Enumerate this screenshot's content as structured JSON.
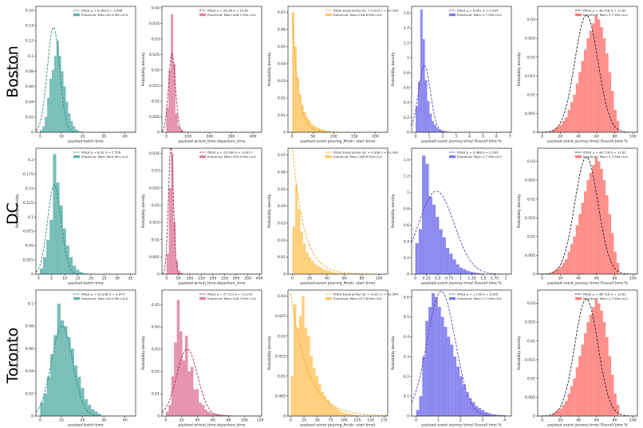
{
  "colors": {
    "batch": "#5fb3ab",
    "arrival": "#e27f9f",
    "pouring": "#ffc765",
    "journey": "#7874ec",
    "overall": "#ff7a76"
  },
  "rows": [
    {
      "label": "Boston"
    },
    {
      "label": "DC"
    },
    {
      "label": "Toronto"
    }
  ],
  "chart_data": [
    {
      "type": "bar",
      "row": "Boston",
      "column": 1,
      "color": "batch",
      "ylabel": "Probability density",
      "xlabel": "payload batch time",
      "xlim": [
        -2,
        45
      ],
      "ylim": [
        0,
        0.165
      ],
      "xticks": [
        0,
        10,
        20,
        30,
        40
      ],
      "yticks": [
        0,
        0.02,
        0.04,
        0.06,
        0.08,
        0.1,
        0.12,
        0.14,
        0.16
      ],
      "bins": {
        "start": 0,
        "width": 1.1,
        "values": [
          0.003,
          0.008,
          0.02,
          0.045,
          0.07,
          0.082,
          0.1,
          0.12,
          0.1,
          0.08,
          0.06,
          0.04,
          0.025,
          0.015,
          0.008,
          0.004,
          0.002,
          0.001,
          0.0005
        ]
      },
      "fit": {
        "kind": "normal",
        "mu": 6.289,
        "sigma": 2.898
      },
      "legend": [
        "fitted μ = 6.289 σ = 2.898",
        "Empirical: Max=42.0 Min=0.0"
      ]
    },
    {
      "type": "bar",
      "row": "Boston",
      "column": 2,
      "color": "arrival",
      "ylabel": "Probability density",
      "xlabel": "payload arrival_time-departure_time",
      "xlim": [
        -20,
        440
      ],
      "ylim": [
        0,
        0.0405
      ],
      "xticks": [
        0,
        100,
        200,
        300,
        400
      ],
      "yticks": [
        0,
        0.005,
        0.01,
        0.015,
        0.02,
        0.025,
        0.03,
        0.035,
        0.04
      ],
      "bins": {
        "start": 0,
        "width": 10.6,
        "values": [
          0.008,
          0.02,
          0.038,
          0.022,
          0.006,
          0.002,
          0.001,
          0.0004
        ]
      },
      "fit": {
        "kind": "normal",
        "mu": 26.36,
        "sigma": 15.62
      },
      "legend": [
        "fitted μ = 26.36 σ = 15.62",
        "Empirical: Max=426.1 Min=0.0"
      ]
    },
    {
      "type": "bar",
      "row": "Boston",
      "column": 3,
      "color": "pouring",
      "ylabel": "Probability density",
      "xlabel": "payload event pouring_finish- start time)",
      "xlim": [
        -10,
        230
      ],
      "ylim": [
        0,
        0.0735
      ],
      "xticks": [
        0,
        50,
        100,
        150,
        200
      ],
      "yticks": [
        0,
        0.01,
        0.02,
        0.03,
        0.04,
        0.05,
        0.06,
        0.07
      ],
      "bins": {
        "start": 0,
        "width": 5.6,
        "values": [
          0.07,
          0.05,
          0.032,
          0.022,
          0.016,
          0.012,
          0.009,
          0.007,
          0.005,
          0.004,
          0.003,
          0.0025,
          0.002,
          0.0015,
          0.001,
          0.0008,
          0.0006,
          0.0005,
          0.0004,
          0.0003
        ]
      },
      "fit": {
        "kind": "exponential",
        "loc": 0.033,
        "scale": 14.358
      },
      "legend": [
        "fitted Exponential loc = 0.033 s = 14.358",
        "Empirical: Max=216.6 Min=0.0"
      ]
    },
    {
      "type": "bar",
      "row": "Boston",
      "column": 4,
      "color": "journey",
      "ylabel": "Probability density",
      "xlabel": "payload event journey time/ Overall time %",
      "xlim": [
        -0.3,
        7.1
      ],
      "ylim": [
        0,
        1.69
      ],
      "xticks": [
        0,
        1,
        2,
        3,
        4,
        5,
        6,
        7
      ],
      "yticks": [
        0,
        0.2,
        0.4,
        0.6,
        0.8,
        1.0,
        1.2,
        1.4,
        1.6
      ],
      "bins": {
        "start": 0,
        "width": 0.17,
        "values": [
          0.35,
          0.68,
          1.65,
          1.25,
          0.7,
          0.42,
          0.25,
          0.15,
          0.1,
          0.06,
          0.04,
          0.025,
          0.018,
          0.012,
          0.008
        ]
      },
      "fit": {
        "kind": "normal",
        "mu": 0.651,
        "sigma": 0.444
      },
      "legend": [
        "fitted μ = 0.651 σ = 0.444",
        "Empirical: Max=1.7 Min=0.0"
      ]
    },
    {
      "type": "bar",
      "row": "Boston",
      "column": 5,
      "color": "overall",
      "ylabel": "Probability density",
      "xlabel": "payload event journey time/ Overall time %",
      "xlim": [
        -5,
        105
      ],
      "ylim": [
        0,
        0.0335
      ],
      "xticks": [
        0,
        20,
        40,
        60,
        80,
        100
      ],
      "yticks": [
        0,
        0.005,
        0.01,
        0.015,
        0.02,
        0.025,
        0.03
      ],
      "bins": {
        "start": 10,
        "width": 3,
        "values": [
          0.0005,
          0.001,
          0.0015,
          0.002,
          0.003,
          0.004,
          0.006,
          0.008,
          0.01,
          0.013,
          0.016,
          0.019,
          0.022,
          0.025,
          0.027,
          0.029,
          0.031,
          0.03,
          0.028,
          0.025,
          0.021,
          0.016,
          0.011,
          0.006,
          0.003
        ]
      },
      "fit": {
        "kind": "normal",
        "mu": 48.718,
        "sigma": 12.81
      },
      "legend": [
        "fitted μ = 48.718 σ = 12.81",
        "Empirical: Max=1.7 Min=0.0"
      ]
    },
    {
      "type": "bar",
      "row": "DC",
      "column": 1,
      "color": "batch",
      "ylabel": "Probability density",
      "xlabel": "payload batch time",
      "xlim": [
        -1,
        37
      ],
      "ylim": [
        0,
        0.22
      ],
      "xticks": [
        0,
        5,
        10,
        15,
        20,
        25,
        30,
        35
      ],
      "yticks": [
        0,
        0.025,
        0.05,
        0.075,
        0.1,
        0.125,
        0.15,
        0.175,
        0.2
      ],
      "bins": {
        "start": 0.5,
        "width": 1.25,
        "values": [
          0.01,
          0.03,
          0.06,
          0.095,
          0.21,
          0.16,
          0.12,
          0.08,
          0.05,
          0.03,
          0.015,
          0.008,
          0.004,
          0.002,
          0.001
        ]
      },
      "fit": {
        "kind": "normal",
        "mu": 6.03,
        "sigma": 2.556
      },
      "legend": [
        "fitted μ = 6.03 σ = 2.556",
        "Empirical: Max=36.6 Min=0.0"
      ]
    },
    {
      "type": "bar",
      "row": "DC",
      "column": 2,
      "color": "arrival",
      "ylabel": "Probability density",
      "xlabel": "payload arrival_time-departure_time",
      "xlim": [
        -20,
        410
      ],
      "ylim": [
        0,
        0.0365
      ],
      "xticks": [
        0,
        50,
        100,
        150,
        200,
        250,
        300,
        350,
        400
      ],
      "yticks": [
        0,
        0.005,
        0.01,
        0.015,
        0.02,
        0.025,
        0.03,
        0.035
      ],
      "bins": {
        "start": 0,
        "width": 9.8,
        "values": [
          0.006,
          0.025,
          0.035,
          0.015,
          0.004,
          0.001,
          0.0004
        ]
      },
      "fit": {
        "kind": "normal",
        "mu": 18.769,
        "sigma": 10.817
      },
      "legend": [
        "fitted μ = 18.769 σ = 10.817",
        "Empirical: Max=392.5 Min=0.0"
      ]
    },
    {
      "type": "bar",
      "row": "DC",
      "column": 3,
      "color": "pouring",
      "ylabel": "Probability density",
      "xlabel": "payload event pouring_finish- start time)",
      "xlim": [
        -5,
        110
      ],
      "ylim": [
        0,
        0.074
      ],
      "xticks": [
        0,
        20,
        40,
        60,
        80,
        100
      ],
      "yticks": [
        0,
        0.01,
        0.02,
        0.03,
        0.04,
        0.05,
        0.06,
        0.07
      ],
      "bins": {
        "start": 0,
        "width": 3.1,
        "values": [
          0.028,
          0.052,
          0.038,
          0.025,
          0.018,
          0.013,
          0.01,
          0.008,
          0.006,
          0.005,
          0.004,
          0.003,
          0.0025,
          0.002,
          0.0015,
          0.001,
          0.0008,
          0.0006,
          0.0005,
          0.0004,
          0.0003,
          0.0002
        ]
      },
      "fit": {
        "kind": "exponential",
        "loc": 0.006,
        "scale": 13.349
      },
      "legend": [
        "fitted Exponential loc = 0.006 s = 13.349",
        "Empirical: Max=165.8 Min=0.0"
      ]
    },
    {
      "type": "bar",
      "row": "DC",
      "column": 4,
      "color": "journey",
      "ylabel": "Probability density",
      "xlabel": "payload event journey time/ Overall time %",
      "xlim": [
        -0.08,
        2.12
      ],
      "ylim": [
        0,
        1.54
      ],
      "xticks": [
        0,
        0.25,
        0.5,
        0.75,
        1.0,
        1.25,
        1.5,
        1.75,
        2.0
      ],
      "yticks": [
        0,
        0.2,
        0.4,
        0.6,
        0.8,
        1.0,
        1.2,
        1.4
      ],
      "bins": {
        "start": 0,
        "width": 0.075,
        "values": [
          0.38,
          0.55,
          1.45,
          1.35,
          0.95,
          0.85,
          0.7,
          0.55,
          0.45,
          0.32,
          0.25,
          0.18,
          0.12,
          0.08,
          0.06,
          0.04,
          0.03,
          0.02,
          0.015,
          0.01
        ]
      },
      "fit": {
        "kind": "normal",
        "mu": 0.466,
        "sigma": 0.393
      },
      "legend": [
        "fitted μ = 0.466 σ = 0.393",
        "Empirical: Max=1.7 Min=0.0"
      ]
    },
    {
      "type": "bar",
      "row": "DC",
      "column": 5,
      "color": "overall",
      "ylabel": "Probability density",
      "xlabel": "payload event journey time/ Overall time %",
      "xlim": [
        -5,
        105
      ],
      "ylim": [
        0,
        0.0335
      ],
      "xticks": [
        0,
        20,
        40,
        60,
        80,
        100
      ],
      "yticks": [
        0,
        0.005,
        0.01,
        0.015,
        0.02,
        0.025,
        0.03
      ],
      "bins": {
        "start": 10,
        "width": 3,
        "values": [
          0.0005,
          0.001,
          0.0015,
          0.002,
          0.003,
          0.004,
          0.006,
          0.008,
          0.01,
          0.013,
          0.016,
          0.019,
          0.022,
          0.025,
          0.027,
          0.029,
          0.031,
          0.03,
          0.028,
          0.025,
          0.021,
          0.016,
          0.011,
          0.006,
          0.003
        ]
      },
      "fit": {
        "kind": "normal",
        "mu": 48.718,
        "sigma": 12.81
      },
      "legend": [
        "fitted μ = 48.718 σ = 12.81",
        "Empirical: Max=1.7 Min=0.0"
      ]
    },
    {
      "type": "bar",
      "row": "Toronto",
      "column": 1,
      "color": "batch",
      "ylabel": "Probability density",
      "xlabel": "payload batch time",
      "xlim": [
        -2,
        45
      ],
      "ylim": [
        0,
        0.112
      ],
      "xticks": [
        0,
        10,
        20,
        30,
        40
      ],
      "yticks": [
        0,
        0.02,
        0.04,
        0.06,
        0.08,
        0.1
      ],
      "bins": {
        "start": 0,
        "width": 1.6,
        "values": [
          0.012,
          0.02,
          0.035,
          0.055,
          0.072,
          0.1,
          0.085,
          0.08,
          0.07,
          0.06,
          0.045,
          0.035,
          0.025,
          0.015,
          0.01,
          0.006,
          0.004,
          0.002
        ]
      },
      "fit": {
        "kind": "normal",
        "mu": 10.338,
        "sigma": 4.974
      },
      "legend": [
        "fitted μ = 10.338 σ = 4.974",
        "Empirical: Max=44.0 Min=0.0"
      ]
    },
    {
      "type": "bar",
      "row": "Toronto",
      "column": 2,
      "color": "arrival",
      "ylabel": "Probability density",
      "xlabel": "payload arrival_time-departure_time",
      "xlim": [
        -5,
        122
      ],
      "ylim": [
        0,
        0.0565
      ],
      "xticks": [
        0,
        20,
        40,
        60,
        80,
        100,
        120
      ],
      "yticks": [
        0,
        0.01,
        0.02,
        0.03,
        0.04,
        0.05
      ],
      "bins": {
        "start": 0,
        "width": 3.5,
        "values": [
          0.002,
          0.005,
          0.018,
          0.033,
          0.052,
          0.038,
          0.025,
          0.036,
          0.02,
          0.022,
          0.012,
          0.012,
          0.006,
          0.005,
          0.003,
          0.002,
          0.0015,
          0.001,
          0.001,
          0.0008,
          0.0006,
          0.0005,
          0.0004,
          0.0003
        ]
      },
      "fit": {
        "kind": "normal",
        "mu": 27.112,
        "sigma": 13.293
      },
      "legend": [
        "fitted μ = 27.112 σ = 13.293",
        "Empirical: Max=116.3 Min=3.0"
      ]
    },
    {
      "type": "bar",
      "row": "Toronto",
      "column": 3,
      "color": "pouring",
      "ylabel": "Probability density",
      "xlabel": "payload event pouring_finish- start time)",
      "xlim": [
        -5,
        182
      ],
      "ylim": [
        0,
        0.0315
      ],
      "xticks": [
        0,
        25,
        50,
        75,
        100,
        125,
        150,
        175
      ],
      "yticks": [
        0,
        0.005,
        0.01,
        0.015,
        0.02,
        0.025,
        0.03
      ],
      "bins": {
        "start": 0,
        "width": 5.2,
        "values": [
          0.01,
          0.028,
          0.022,
          0.025,
          0.03,
          0.022,
          0.02,
          0.015,
          0.012,
          0.01,
          0.008,
          0.006,
          0.005,
          0.004,
          0.003,
          0.0025,
          0.002,
          0.0015,
          0.001,
          0.0008,
          0.0006,
          0.0005,
          0.0004,
          0.0003,
          0.0002
        ]
      },
      "fit": {
        "kind": "exponential",
        "loc": 0.017,
        "scale": 32.584
      },
      "legend": [
        "fitted Exponential loc = 0.017 s = 32.584",
        "Empirical: Max=227.6 Min=0.0"
      ]
    },
    {
      "type": "bar",
      "row": "Toronto",
      "column": 4,
      "color": "journey",
      "ylabel": "Probability density",
      "xlabel": "payload event journey time/ Overall time %",
      "xlim": [
        -0.2,
        4.3
      ],
      "ylim": [
        0,
        0.635
      ],
      "xticks": [
        0,
        1,
        2,
        3,
        4
      ],
      "yticks": [
        0,
        0.1,
        0.2,
        0.3,
        0.4,
        0.5,
        0.6
      ],
      "bins": {
        "start": 0,
        "width": 0.14,
        "values": [
          0.03,
          0.1,
          0.3,
          0.48,
          0.55,
          0.62,
          0.6,
          0.55,
          0.5,
          0.45,
          0.4,
          0.36,
          0.3,
          0.25,
          0.2,
          0.16,
          0.12,
          0.09,
          0.07,
          0.05,
          0.04,
          0.03,
          0.02,
          0.015,
          0.01,
          0.008,
          0.006,
          0.005,
          0.004
        ]
      },
      "fit": {
        "kind": "normal",
        "mu": 1.136,
        "sigma": 0.635
      },
      "legend": [
        "fitted μ = 1.136 σ = 0.635",
        "Empirical: Max=1.7 Min=0.0"
      ]
    },
    {
      "type": "bar",
      "row": "Toronto",
      "column": 5,
      "color": "overall",
      "ylabel": "Probability density",
      "xlabel": "payload event journey time/ Overall time %",
      "xlim": [
        -5,
        105
      ],
      "ylim": [
        0,
        0.0335
      ],
      "xticks": [
        0,
        20,
        40,
        60,
        80,
        100
      ],
      "yticks": [
        0,
        0.005,
        0.01,
        0.015,
        0.02,
        0.025,
        0.03
      ],
      "bins": {
        "start": 10,
        "width": 3,
        "values": [
          0.0005,
          0.001,
          0.0015,
          0.002,
          0.003,
          0.004,
          0.006,
          0.008,
          0.01,
          0.013,
          0.016,
          0.019,
          0.022,
          0.025,
          0.027,
          0.029,
          0.031,
          0.03,
          0.028,
          0.025,
          0.021,
          0.016,
          0.011,
          0.006,
          0.003
        ]
      },
      "fit": {
        "kind": "normal",
        "mu": 48.718,
        "sigma": 12.81
      },
      "legend": [
        "fitted μ = 48.718 σ = 12.81",
        "Empirical: Max=1.7 Min=0.0"
      ]
    }
  ]
}
